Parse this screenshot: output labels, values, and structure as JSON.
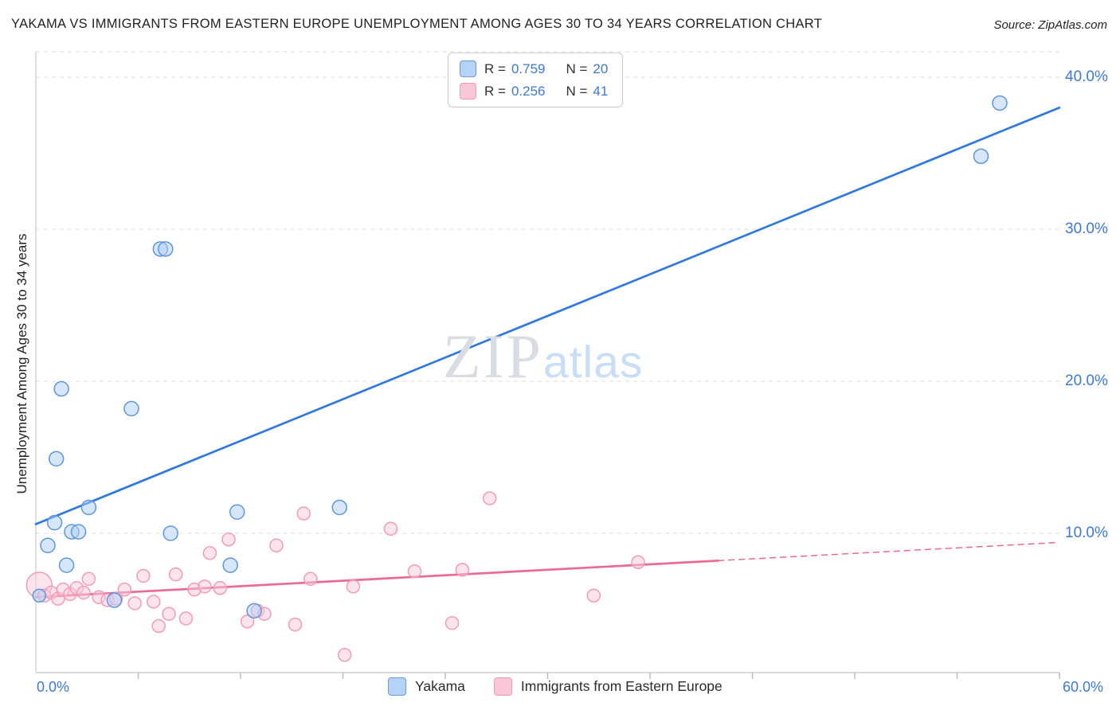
{
  "header": {
    "title": "YAKAMA VS IMMIGRANTS FROM EASTERN EUROPE UNEMPLOYMENT AMONG AGES 30 TO 34 YEARS CORRELATION CHART",
    "source": "Source: ZipAtlas.com"
  },
  "legend_box": {
    "rows": [
      {
        "r_label": "R =",
        "r_value": "0.759",
        "n_label": "N =",
        "n_value": "20"
      },
      {
        "r_label": "R =",
        "r_value": "0.256",
        "n_label": "N =",
        "n_value": "41"
      }
    ]
  },
  "watermark": {
    "zip": "ZIP",
    "atlas": "atlas"
  },
  "axes": {
    "y_label": "Unemployment Among Ages 30 to 34 years",
    "x_min_label": "0.0%",
    "x_max_label": "60.0%",
    "y_ticks": [
      {
        "value": 40,
        "label": "40.0%"
      },
      {
        "value": 30,
        "label": "30.0%"
      },
      {
        "value": 20,
        "label": "20.0%"
      },
      {
        "value": 10,
        "label": "10.0%"
      }
    ]
  },
  "bottom_legend": [
    {
      "label": "Yakama"
    },
    {
      "label": "Immigrants from Eastern Europe"
    }
  ],
  "colors": {
    "accent_blue": "#3b78d8",
    "grid": "#e4e4e4",
    "axis": "#cfcfcf",
    "blue_line": "#2f78e0",
    "blue_fill": "#add0f7",
    "blue_stroke": "#5e96dd",
    "pink_line": "#ea6a93",
    "pink_fill": "#fac9da",
    "pink_stroke": "#f49ab9"
  },
  "chart_data": {
    "type": "scatter",
    "title": "Yakama vs Immigrants from Eastern Europe Unemployment Among Ages 30 to 34 years",
    "xlabel": "",
    "ylabel": "Unemployment Among Ages 30 to 34 years",
    "x_range": [
      0,
      60
    ],
    "y_range": [
      0,
      41.7
    ],
    "x_tick_step": 6,
    "gridlines": [
      10,
      20,
      30,
      40
    ],
    "legend_position": "bottom",
    "series": [
      {
        "name": "Immigrants from Eastern Europe",
        "key": "immigrants",
        "R": 0.256,
        "N": 41,
        "fill": "#fac9da",
        "stroke": "#f49ab9",
        "line_color": "#ea6a93",
        "trend_segments": [
          {
            "x1": 0,
            "y1": 5.8,
            "x2": 40,
            "y2": 8.2,
            "dashed": false
          },
          {
            "x1": 40,
            "y1": 8.2,
            "x2": 60,
            "y2": 9.4,
            "dashed": true
          }
        ],
        "points": [
          [
            0.2,
            6.6,
            16
          ],
          [
            0.5,
            5.9,
            8
          ],
          [
            0.9,
            6.1,
            8
          ],
          [
            1.3,
            5.7,
            8
          ],
          [
            1.6,
            6.3,
            8
          ],
          [
            2.0,
            6.0,
            8
          ],
          [
            2.4,
            6.4,
            8
          ],
          [
            2.8,
            6.1,
            8
          ],
          [
            3.1,
            7.0,
            8
          ],
          [
            3.7,
            5.8,
            8
          ],
          [
            4.2,
            5.6,
            8
          ],
          [
            4.7,
            5.7,
            8
          ],
          [
            5.2,
            6.3,
            8
          ],
          [
            5.8,
            5.4,
            8
          ],
          [
            6.3,
            7.2,
            8
          ],
          [
            6.9,
            5.5,
            8
          ],
          [
            7.2,
            3.9,
            8
          ],
          [
            7.8,
            4.7,
            8
          ],
          [
            8.2,
            7.3,
            8
          ],
          [
            8.8,
            4.4,
            8
          ],
          [
            9.3,
            6.3,
            8
          ],
          [
            9.9,
            6.5,
            8
          ],
          [
            10.2,
            8.7,
            8
          ],
          [
            10.8,
            6.4,
            8
          ],
          [
            11.3,
            9.6,
            8
          ],
          [
            12.4,
            4.2,
            8
          ],
          [
            13.0,
            4.9,
            8
          ],
          [
            13.4,
            4.7,
            8
          ],
          [
            14.1,
            9.2,
            8
          ],
          [
            15.2,
            4.0,
            8
          ],
          [
            15.7,
            11.3,
            8
          ],
          [
            16.1,
            7.0,
            8
          ],
          [
            18.1,
            2.0,
            8
          ],
          [
            18.6,
            6.5,
            8
          ],
          [
            20.8,
            10.3,
            8
          ],
          [
            22.2,
            7.5,
            8
          ],
          [
            24.4,
            4.1,
            8
          ],
          [
            25.0,
            7.6,
            8
          ],
          [
            26.6,
            12.3,
            8
          ],
          [
            32.7,
            5.9,
            8
          ],
          [
            35.3,
            8.1,
            8
          ]
        ]
      },
      {
        "name": "Yakama",
        "key": "yakama",
        "R": 0.759,
        "N": 20,
        "fill": "#add0f7",
        "stroke": "#5e96dd",
        "line_color": "#2f78e0",
        "trend_segments": [
          {
            "x1": 0,
            "y1": 10.6,
            "x2": 60,
            "y2": 38.0,
            "dashed": false
          }
        ],
        "points": [
          [
            0.2,
            5.9,
            8
          ],
          [
            0.7,
            9.2,
            9
          ],
          [
            1.1,
            10.7,
            9
          ],
          [
            1.2,
            14.9,
            9
          ],
          [
            1.5,
            19.5,
            9
          ],
          [
            1.8,
            7.9,
            9
          ],
          [
            2.1,
            10.1,
            9
          ],
          [
            2.5,
            10.1,
            9
          ],
          [
            3.1,
            11.7,
            9
          ],
          [
            4.6,
            5.6,
            9
          ],
          [
            5.6,
            18.2,
            9
          ],
          [
            7.3,
            28.7,
            9
          ],
          [
            7.6,
            28.7,
            9
          ],
          [
            7.9,
            10.0,
            9
          ],
          [
            11.4,
            7.9,
            9
          ],
          [
            11.8,
            11.4,
            9
          ],
          [
            12.8,
            4.9,
            9
          ],
          [
            17.8,
            11.7,
            9
          ],
          [
            55.4,
            34.8,
            9
          ],
          [
            56.5,
            38.3,
            9
          ]
        ]
      }
    ]
  }
}
